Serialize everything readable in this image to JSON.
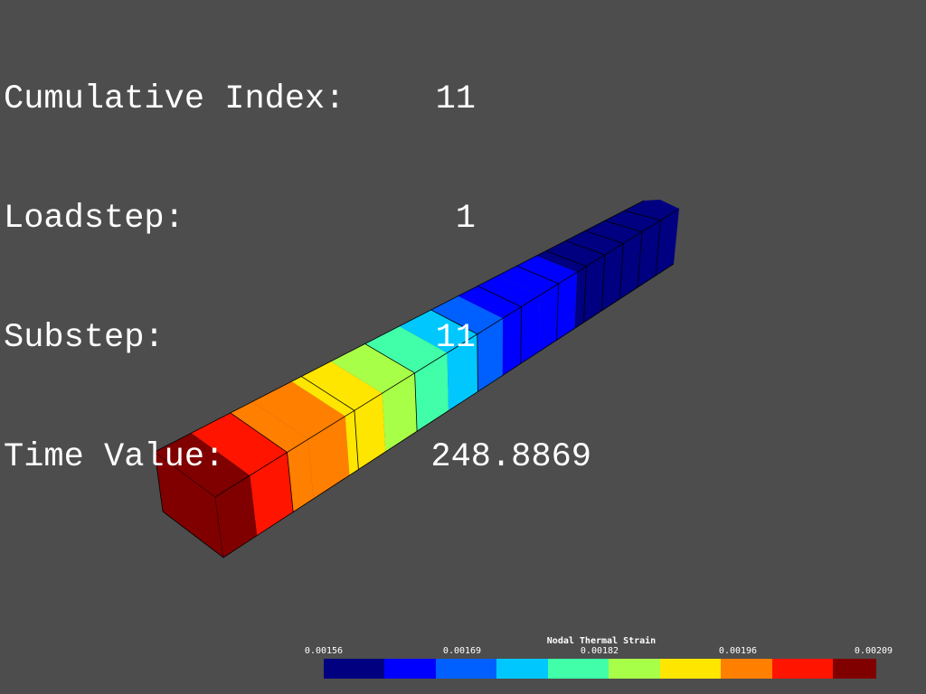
{
  "info": {
    "cumulative_index_label": "Cumulative Index:",
    "cumulative_index_value": "11",
    "loadstep_label": "Loadstep:",
    "loadstep_value": "1",
    "substep_label": "Substep:",
    "substep_value": "11",
    "time_value_label": "Time Value:",
    "time_value_value": "248.8869"
  },
  "legend": {
    "title": "Nodal Thermal Strain",
    "ticks": [
      "0.00156",
      "0.00169",
      "0.00182",
      "0.00196",
      "0.00209"
    ],
    "colors": [
      "#000080",
      "#0000ff",
      "#0060ff",
      "#00c8ff",
      "#40ffa8",
      "#a8ff48",
      "#ffe600",
      "#ff7f00",
      "#ff1400",
      "#800000"
    ]
  }
}
